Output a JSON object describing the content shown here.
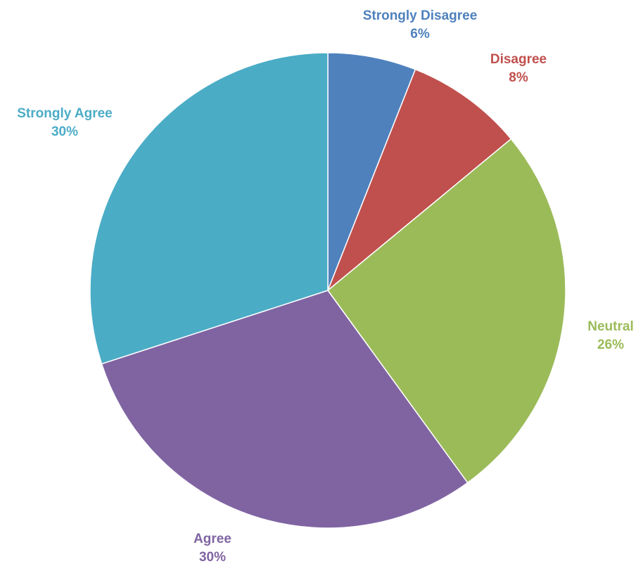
{
  "chart_data": {
    "type": "pie",
    "title": "",
    "start_angle_deg": 0,
    "direction": "clockwise",
    "slices": [
      {
        "label": "Strongly Disagree",
        "value": 6,
        "value_label": "6%",
        "color": "#4F81BD"
      },
      {
        "label": "Disagree",
        "value": 8,
        "value_label": "8%",
        "color": "#C0504D"
      },
      {
        "label": "Neutral",
        "value": 26,
        "value_label": "26%",
        "color": "#9BBB59"
      },
      {
        "label": "Agree",
        "value": 30,
        "value_label": "30%",
        "color": "#8064A2"
      },
      {
        "label": "Strongly Agree",
        "value": 30,
        "value_label": "30%",
        "color": "#4BACC6"
      }
    ],
    "label_position": "outside",
    "legend": "none"
  }
}
